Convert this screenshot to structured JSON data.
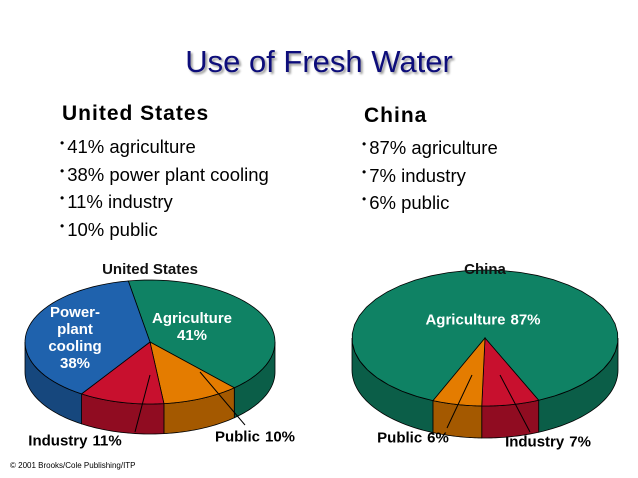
{
  "title": "Use of Fresh Water",
  "sections": [
    {
      "heading": "United States",
      "bullets": [
        "41% agriculture",
        "38% power plant cooling",
        "11% industry",
        "10% public"
      ]
    },
    {
      "heading": "China",
      "bullets": [
        "87% agriculture",
        "7% industry",
        "6% public"
      ]
    }
  ],
  "chart_data": [
    {
      "type": "pie",
      "title": "United States",
      "categories": [
        "Agriculture",
        "Public",
        "Industry",
        "Power-plant cooling"
      ],
      "values": [
        41,
        10,
        11,
        38
      ],
      "value_labels": [
        "41%",
        "10%",
        "11%",
        "38%"
      ],
      "colors": [
        "#0f8264",
        "#e47c00",
        "#c8102e",
        "#1f62ad"
      ]
    },
    {
      "type": "pie",
      "title": "China",
      "categories": [
        "Agriculture",
        "Industry",
        "Public"
      ],
      "values": [
        87,
        7,
        6
      ],
      "value_labels": [
        "87%",
        "7%",
        "6%"
      ],
      "colors": [
        "#0f8264",
        "#c8102e",
        "#e47c00"
      ]
    }
  ],
  "copyright": "© 2001 Brooks/Cole Publishing/ITP"
}
